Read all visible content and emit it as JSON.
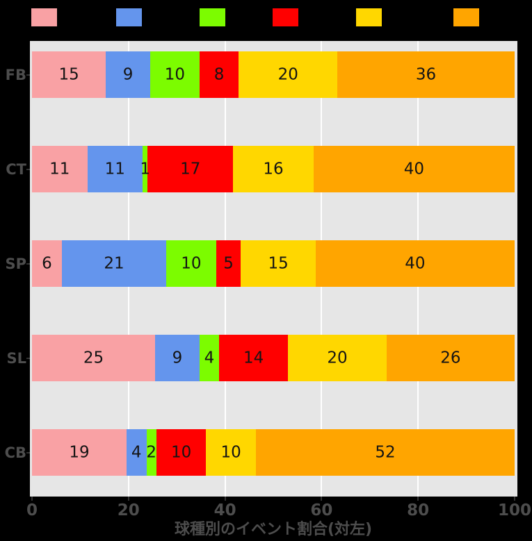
{
  "colors": {
    "background": "#000000",
    "panel_bg": "#E6E6E6",
    "gridline": "#FFFFFF",
    "axis_text": "#4D4D4D",
    "tick_mark": "#333333",
    "bar_label_text": "#141414"
  },
  "legend": {
    "position": "top",
    "labels_visible": false,
    "items": [
      {
        "name": "series-pink",
        "color": "#F9A1A4",
        "label": ""
      },
      {
        "name": "series-blue",
        "color": "#6495ED",
        "label": ""
      },
      {
        "name": "series-green",
        "color": "#7CFC00",
        "label": ""
      },
      {
        "name": "series-red",
        "color": "#FF0000",
        "label": ""
      },
      {
        "name": "series-yellow",
        "color": "#FFD700",
        "label": ""
      },
      {
        "name": "series-orange",
        "color": "#FFA500",
        "label": ""
      }
    ]
  },
  "chart_data": {
    "type": "bar",
    "orientation": "horizontal",
    "stacked": true,
    "normalized_to_100": true,
    "title": "",
    "xlabel": "球種別のイベント割合(対左)",
    "ylabel": "",
    "xlim": [
      0,
      100
    ],
    "x_ticks": [
      "0",
      "20",
      "40",
      "60",
      "80",
      "100"
    ],
    "x_tick_values": [
      0,
      20,
      40,
      60,
      80,
      100
    ],
    "gridlines": [
      20,
      40,
      60,
      80
    ],
    "categories": [
      "FB",
      "CT",
      "SP",
      "SL",
      "CB"
    ],
    "series": [
      {
        "name": "series-pink",
        "color": "#F9A1A4",
        "values": [
          15,
          11,
          6,
          25,
          19
        ]
      },
      {
        "name": "series-blue",
        "color": "#6495ED",
        "values": [
          9,
          11,
          21,
          9,
          4
        ]
      },
      {
        "name": "series-green",
        "color": "#7CFC00",
        "values": [
          10,
          1,
          10,
          4,
          2
        ]
      },
      {
        "name": "series-red",
        "color": "#FF0000",
        "values": [
          8,
          17,
          5,
          14,
          10
        ]
      },
      {
        "name": "series-yellow",
        "color": "#FFD700",
        "values": [
          20,
          16,
          15,
          20,
          10
        ]
      },
      {
        "name": "series-orange",
        "color": "#FFA500",
        "values": [
          36,
          40,
          40,
          26,
          52
        ]
      }
    ],
    "bar_value_labels_shown": true,
    "legend_position": "top"
  }
}
